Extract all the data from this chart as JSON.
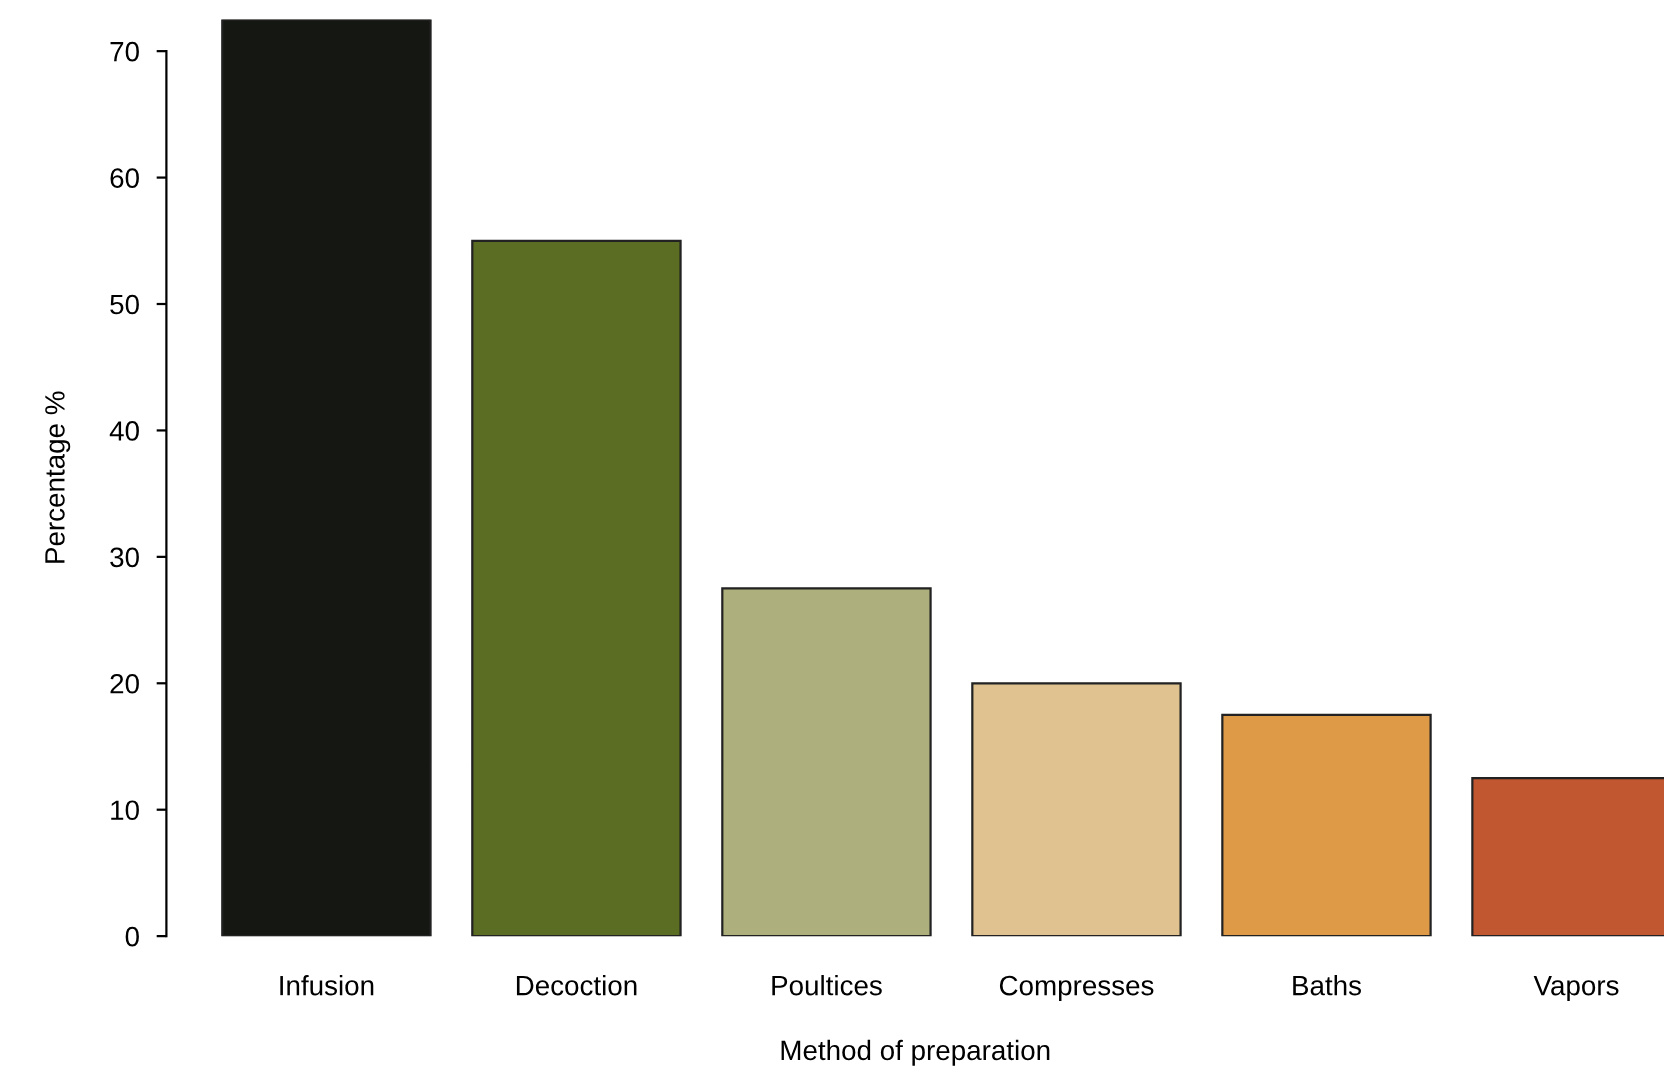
{
  "chart_data": {
    "type": "bar",
    "categories": [
      "Infusion",
      "Decoction",
      "Poultices",
      "Compresses",
      "Baths",
      "Vapors"
    ],
    "values": [
      72.5,
      55,
      27.5,
      20,
      17.5,
      12.5
    ],
    "colors": [
      "#151712",
      "#5b6c23",
      "#adb07c",
      "#dfc28f",
      "#df9a48",
      "#c05731"
    ],
    "xlabel": "Method of preparation",
    "ylabel": "Percentage %",
    "ylim": [
      0,
      72.5
    ],
    "yticks": [
      0,
      10,
      20,
      30,
      40,
      50,
      60,
      70
    ],
    "grid": false
  }
}
